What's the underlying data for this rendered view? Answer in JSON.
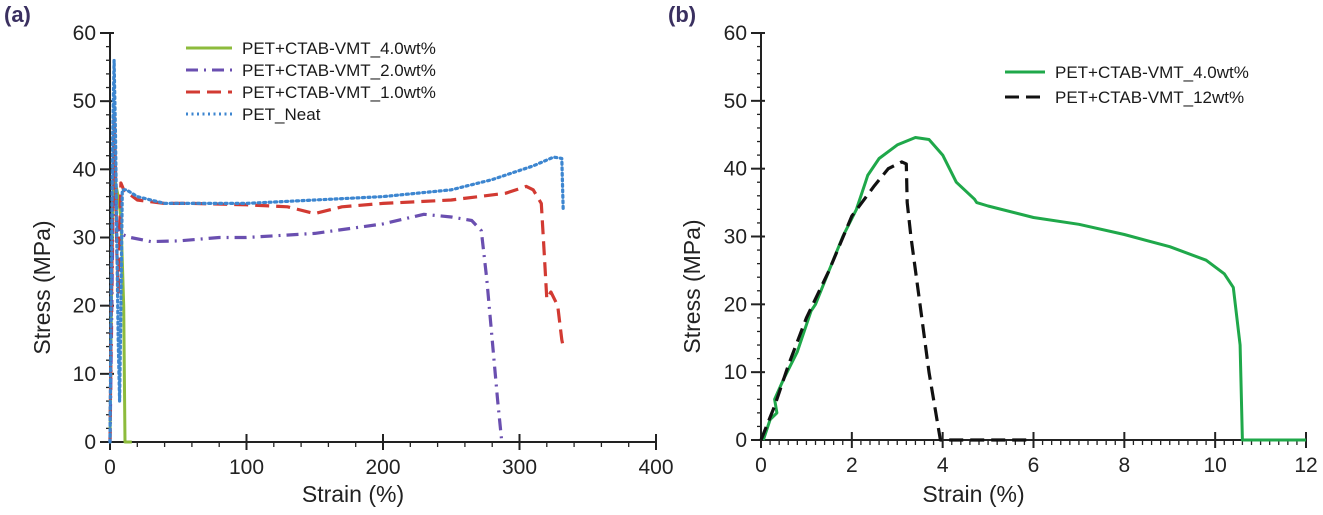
{
  "chart_data": [
    {
      "panel": "(a)",
      "type": "line",
      "title": "",
      "xlabel": "Strain (%)",
      "ylabel": "Stress (MPa)",
      "xlim": [
        0,
        400
      ],
      "ylim": [
        0,
        60
      ],
      "xticks": [
        0,
        100,
        200,
        300,
        400
      ],
      "yticks": [
        0,
        10,
        20,
        30,
        40,
        50,
        60
      ],
      "grid": false,
      "legend_position": "top-center",
      "series": [
        {
          "name": "PET+CTAB-VMT_4.0wt%",
          "color": "#8dbb3c",
          "style": "solid",
          "points": [
            [
              0,
              0
            ],
            [
              1,
              20
            ],
            [
              2,
              35
            ],
            [
              3,
              40
            ],
            [
              4,
              38
            ],
            [
              6,
              36
            ],
            [
              8,
              33
            ],
            [
              10,
              20
            ],
            [
              11,
              0
            ],
            [
              16,
              0
            ]
          ]
        },
        {
          "name": "PET+CTAB-VMT_2.0wt%",
          "color": "#6a4fb0",
          "style": "dashdot",
          "points": [
            [
              0,
              0
            ],
            [
              1,
              15
            ],
            [
              2,
              30
            ],
            [
              3,
              43
            ],
            [
              4,
              38
            ],
            [
              5,
              32
            ],
            [
              8,
              30.5
            ],
            [
              15,
              30
            ],
            [
              30,
              29.4
            ],
            [
              50,
              29.5
            ],
            [
              80,
              30
            ],
            [
              100,
              30
            ],
            [
              150,
              30.6
            ],
            [
              200,
              32
            ],
            [
              230,
              33.4
            ],
            [
              250,
              33
            ],
            [
              265,
              32.5
            ],
            [
              272,
              31
            ],
            [
              276,
              24
            ],
            [
              280,
              15
            ],
            [
              284,
              6
            ],
            [
              287,
              0
            ]
          ]
        },
        {
          "name": "PET+CTAB-VMT_1.0wt%",
          "color": "#d23a32",
          "style": "dashed",
          "points": [
            [
              0,
              0
            ],
            [
              1,
              20
            ],
            [
              2,
              35
            ],
            [
              3,
              48
            ],
            [
              4,
              40
            ],
            [
              5,
              28
            ],
            [
              6,
              22
            ],
            [
              7,
              30
            ],
            [
              8,
              38
            ],
            [
              10,
              37
            ],
            [
              20,
              35.5
            ],
            [
              40,
              35
            ],
            [
              60,
              35
            ],
            [
              100,
              34.8
            ],
            [
              130,
              34.5
            ],
            [
              150,
              33.5
            ],
            [
              170,
              34.5
            ],
            [
              200,
              35
            ],
            [
              250,
              35.5
            ],
            [
              290,
              36.5
            ],
            [
              305,
              37.5
            ],
            [
              310,
              37
            ],
            [
              316,
              35
            ],
            [
              318,
              28
            ],
            [
              320,
              21
            ],
            [
              323,
              22
            ],
            [
              328,
              20
            ],
            [
              331,
              15
            ],
            [
              332,
              14
            ]
          ]
        },
        {
          "name": "PET_Neat",
          "color": "#3d86d0",
          "style": "dotted",
          "points": [
            [
              0,
              0
            ],
            [
              1,
              25
            ],
            [
              2,
              45
            ],
            [
              3,
              56
            ],
            [
              4,
              45
            ],
            [
              5,
              30
            ],
            [
              6,
              15
            ],
            [
              7,
              6
            ],
            [
              8,
              20
            ],
            [
              9,
              37
            ],
            [
              12,
              37
            ],
            [
              20,
              36
            ],
            [
              40,
              35
            ],
            [
              60,
              35
            ],
            [
              100,
              35
            ],
            [
              150,
              35.5
            ],
            [
              200,
              36
            ],
            [
              250,
              37
            ],
            [
              280,
              38.5
            ],
            [
              310,
              40.5
            ],
            [
              325,
              41.8
            ],
            [
              331,
              41.6
            ],
            [
              332,
              34
            ]
          ]
        }
      ]
    },
    {
      "panel": "(b)",
      "type": "line",
      "title": "",
      "xlabel": "Strain (%)",
      "ylabel": "Stress (MPa)",
      "xlim": [
        0,
        12
      ],
      "ylim": [
        0,
        60
      ],
      "xticks": [
        0,
        2,
        4,
        6,
        8,
        10,
        12
      ],
      "yticks": [
        0,
        10,
        20,
        30,
        40,
        50,
        60
      ],
      "grid": false,
      "legend_position": "top-right",
      "series": [
        {
          "name": "PET+CTAB-VMT_4.0wt%",
          "color": "#1fa84a",
          "style": "solid",
          "points": [
            [
              0.05,
              0
            ],
            [
              0.2,
              3
            ],
            [
              0.35,
              4
            ],
            [
              0.3,
              6
            ],
            [
              0.5,
              9
            ],
            [
              0.8,
              13
            ],
            [
              1.1,
              19
            ],
            [
              1.2,
              20
            ],
            [
              1.5,
              25
            ],
            [
              1.8,
              30
            ],
            [
              2.1,
              34
            ],
            [
              2.3,
              38
            ],
            [
              2.35,
              39
            ],
            [
              2.6,
              41.5
            ],
            [
              3.0,
              43.5
            ],
            [
              3.4,
              44.6
            ],
            [
              3.7,
              44.3
            ],
            [
              4.0,
              42
            ],
            [
              4.3,
              38
            ],
            [
              4.7,
              35.5
            ],
            [
              4.75,
              35
            ],
            [
              5.0,
              34.5
            ],
            [
              6.0,
              32.8
            ],
            [
              7.0,
              31.8
            ],
            [
              8.0,
              30.3
            ],
            [
              9.0,
              28.5
            ],
            [
              9.8,
              26.5
            ],
            [
              10.2,
              24.5
            ],
            [
              10.4,
              22.5
            ],
            [
              10.55,
              14
            ],
            [
              10.6,
              0
            ],
            [
              12,
              0
            ]
          ]
        },
        {
          "name": "PET+CTAB-VMT_12wt%",
          "color": "#111111",
          "style": "dashed",
          "points": [
            [
              0,
              0
            ],
            [
              0.3,
              5
            ],
            [
              0.6,
              11
            ],
            [
              1.0,
              18
            ],
            [
              1.5,
              25
            ],
            [
              2.0,
              33
            ],
            [
              2.5,
              37.5
            ],
            [
              2.8,
              40
            ],
            [
              3.1,
              41
            ],
            [
              3.2,
              40.7
            ],
            [
              3.22,
              35
            ],
            [
              3.3,
              30
            ],
            [
              3.5,
              20
            ],
            [
              3.7,
              10
            ],
            [
              3.9,
              2
            ],
            [
              3.95,
              0
            ],
            [
              6,
              0
            ]
          ]
        }
      ]
    }
  ]
}
